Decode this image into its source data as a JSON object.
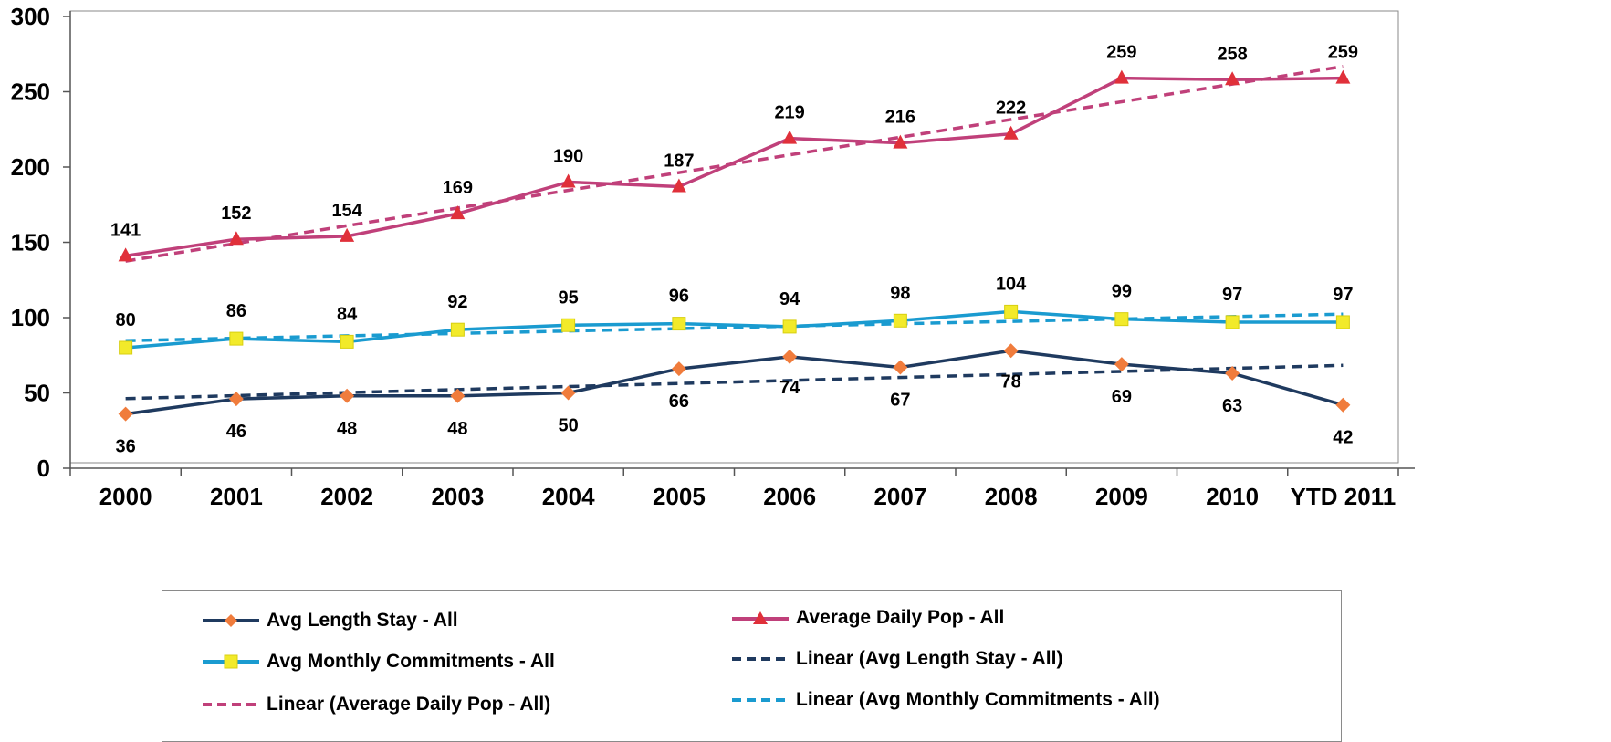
{
  "colors": {
    "los_line": "#1f3a5f",
    "los_marker": "#f07c3c",
    "adp_line": "#c0407a",
    "adp_marker": "#e0303a",
    "amc_line": "#1a9bd0",
    "amc_marker": "#f2ea2a",
    "lin_los": "#1f3a5f",
    "lin_adp": "#c0407a",
    "lin_amc": "#1a9bd0"
  },
  "chart_data": {
    "type": "line",
    "categories": [
      "2000",
      "2001",
      "2002",
      "2003",
      "2004",
      "2005",
      "2006",
      "2007",
      "2008",
      "2009",
      "2010",
      "YTD 2011"
    ],
    "ylim": [
      0,
      300
    ],
    "yticks": [
      "0",
      "50",
      "100",
      "150",
      "200",
      "250",
      "300"
    ],
    "grid": false,
    "legend_position": "bottom",
    "series": [
      {
        "name": "Avg Length Stay - All",
        "key": "los",
        "values": [
          36,
          46,
          48,
          48,
          50,
          66,
          74,
          67,
          78,
          69,
          63,
          42
        ],
        "marker": "diamond"
      },
      {
        "name": "Average Daily Pop - All",
        "key": "adp",
        "values": [
          141,
          152,
          154,
          169,
          190,
          187,
          219,
          216,
          222,
          259,
          258,
          259
        ],
        "marker": "triangle"
      },
      {
        "name": "Avg Monthly Commitments - All",
        "key": "amc",
        "values": [
          80,
          86,
          84,
          92,
          95,
          96,
          94,
          98,
          104,
          99,
          97,
          97
        ],
        "marker": "square"
      }
    ],
    "trendlines": [
      {
        "name": "Linear (Avg Length Stay - All)",
        "key": "lin_los",
        "of": "los"
      },
      {
        "name": "Linear (Average Daily Pop - All)",
        "key": "lin_adp",
        "of": "adp"
      },
      {
        "name": "Linear (Avg Monthly Commitments - All)",
        "key": "lin_amc",
        "of": "amc"
      }
    ]
  }
}
